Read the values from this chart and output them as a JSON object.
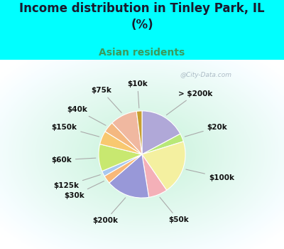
{
  "title": "Income distribution in Tinley Park, IL\n(%)",
  "subtitle": "Asian residents",
  "title_color": "#1a1a2e",
  "subtitle_color": "#3a9a5c",
  "background_color": "#00ffff",
  "chart_bg_color": "#d8f0e0",
  "watermark": "@City-Data.com",
  "labels": [
    "> $200k",
    "$20k",
    "$100k",
    "$50k",
    "$200k",
    "$30k",
    "$125k",
    "$60k",
    "$150k",
    "$40k",
    "$75k",
    "$10k"
  ],
  "values": [
    17,
    3,
    20,
    7,
    16,
    3,
    2,
    10,
    5,
    4,
    10,
    2
  ],
  "colors": [
    "#b0a8d8",
    "#b8e878",
    "#f4f0a0",
    "#f4b0b8",
    "#9898d8",
    "#f8b878",
    "#a8c8f0",
    "#c8e870",
    "#f8c870",
    "#f4b880",
    "#f0b8a0",
    "#c8a030"
  ],
  "label_fontsize": 7.5,
  "title_fontsize": 12,
  "subtitle_fontsize": 10,
  "startangle": 90
}
